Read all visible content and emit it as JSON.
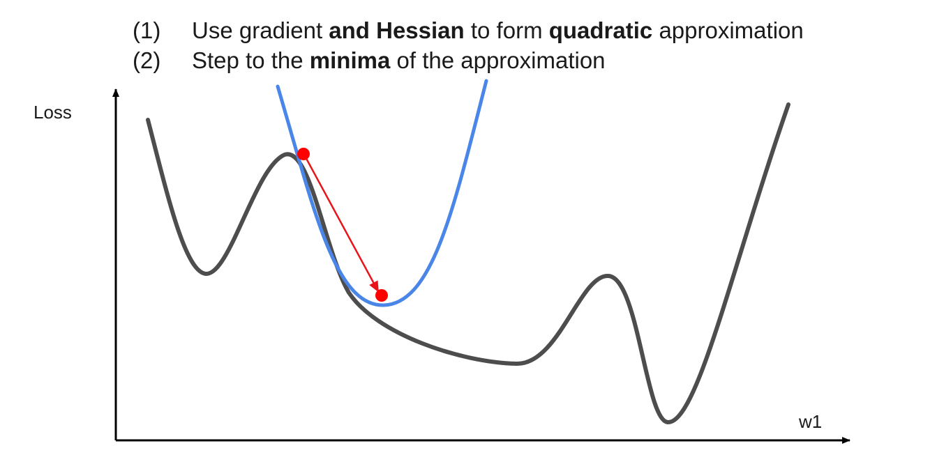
{
  "steps": [
    {
      "number": "(1)",
      "parts": [
        {
          "text": "Use gradient ",
          "bold": false
        },
        {
          "text": "and Hessian",
          "bold": true
        },
        {
          "text": " to form ",
          "bold": false
        },
        {
          "text": "quadratic",
          "bold": true
        },
        {
          "text": " approximation",
          "bold": false
        }
      ]
    },
    {
      "number": "(2)",
      "parts": [
        {
          "text": "Step to the ",
          "bold": false
        },
        {
          "text": "minima",
          "bold": true
        },
        {
          "text": " of the approximation",
          "bold": false
        }
      ]
    }
  ],
  "axes": {
    "y_label": "Loss",
    "x_label": "w1"
  },
  "colors": {
    "loss_curve": "#4d4d4d",
    "quadratic_curve": "#4a86e8",
    "step_arrow": "#e8141a",
    "points": "#ff0000",
    "axes": "#000000"
  }
}
